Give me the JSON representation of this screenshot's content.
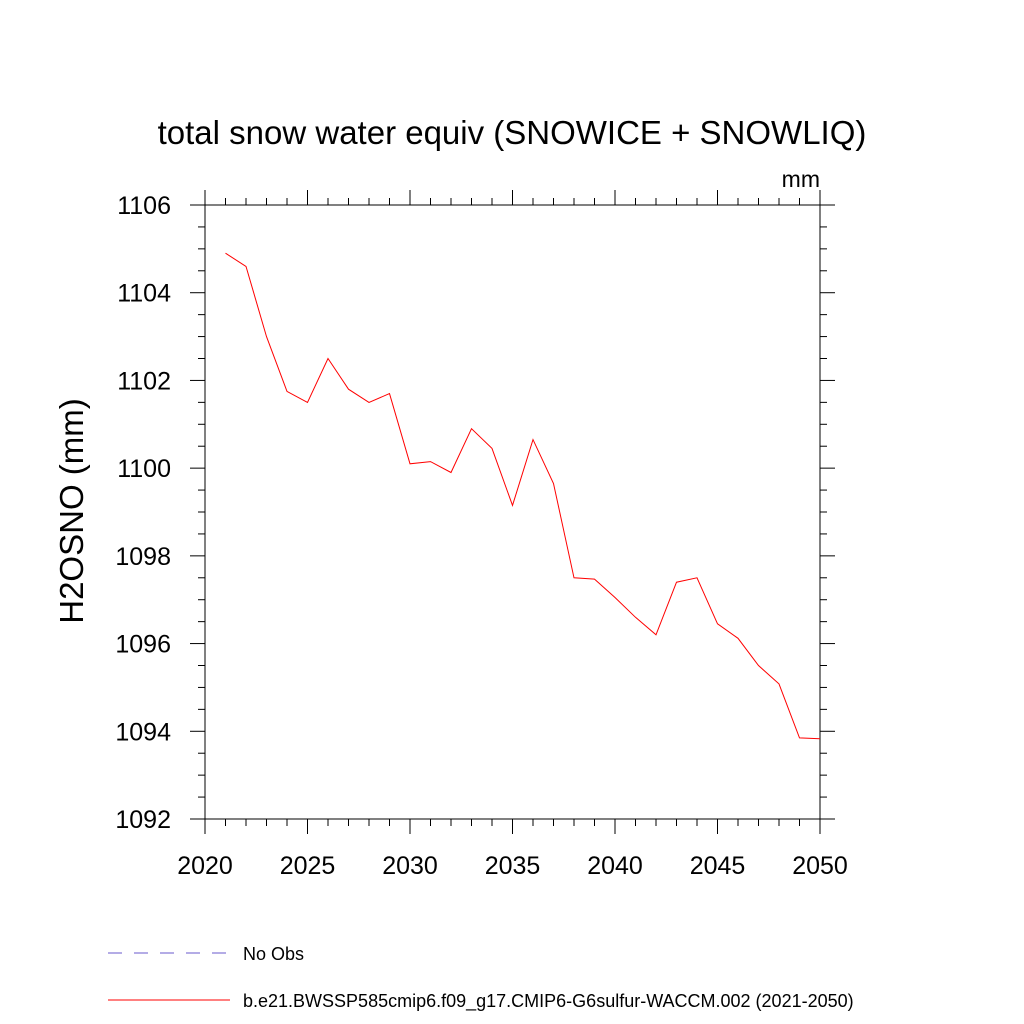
{
  "chart_data": {
    "type": "line",
    "title": "total snow water equiv (SNOWICE + SNOWLIQ)",
    "units_label": "mm",
    "xlabel": "",
    "ylabel": "H2OSNO  (mm)",
    "xlim": [
      2020,
      2050
    ],
    "ylim": [
      1092,
      1106
    ],
    "x_ticks": [
      2020,
      2025,
      2030,
      2035,
      2040,
      2045,
      2050
    ],
    "y_ticks": [
      1092,
      1094,
      1096,
      1098,
      1100,
      1102,
      1104,
      1106
    ],
    "grid": false,
    "legend_position": "bottom-left",
    "series": [
      {
        "name": "No Obs",
        "color": "#6a5acd",
        "dash": "dashed",
        "x": [],
        "y": []
      },
      {
        "name": "b.e21.BWSSP585cmip6.f09_g17.CMIP6-G6sulfur-WACCM.002 (2021-2050)",
        "color": "#ff0000",
        "dash": "solid",
        "x": [
          2021,
          2022,
          2023,
          2024,
          2025,
          2026,
          2027,
          2028,
          2029,
          2030,
          2031,
          2032,
          2033,
          2034,
          2035,
          2036,
          2037,
          2038,
          2039,
          2040,
          2041,
          2042,
          2043,
          2044,
          2045,
          2046,
          2047,
          2048,
          2049,
          2050
        ],
        "y": [
          1104.9,
          1104.6,
          1103.0,
          1101.75,
          1101.5,
          1102.5,
          1101.8,
          1101.5,
          1101.7,
          1100.1,
          1100.15,
          1099.9,
          1100.9,
          1100.45,
          1099.15,
          1100.65,
          1099.65,
          1097.5,
          1097.47,
          1097.05,
          1096.6,
          1096.2,
          1097.4,
          1097.5,
          1096.45,
          1096.12,
          1095.5,
          1095.08,
          1093.85,
          1093.83
        ]
      }
    ]
  }
}
